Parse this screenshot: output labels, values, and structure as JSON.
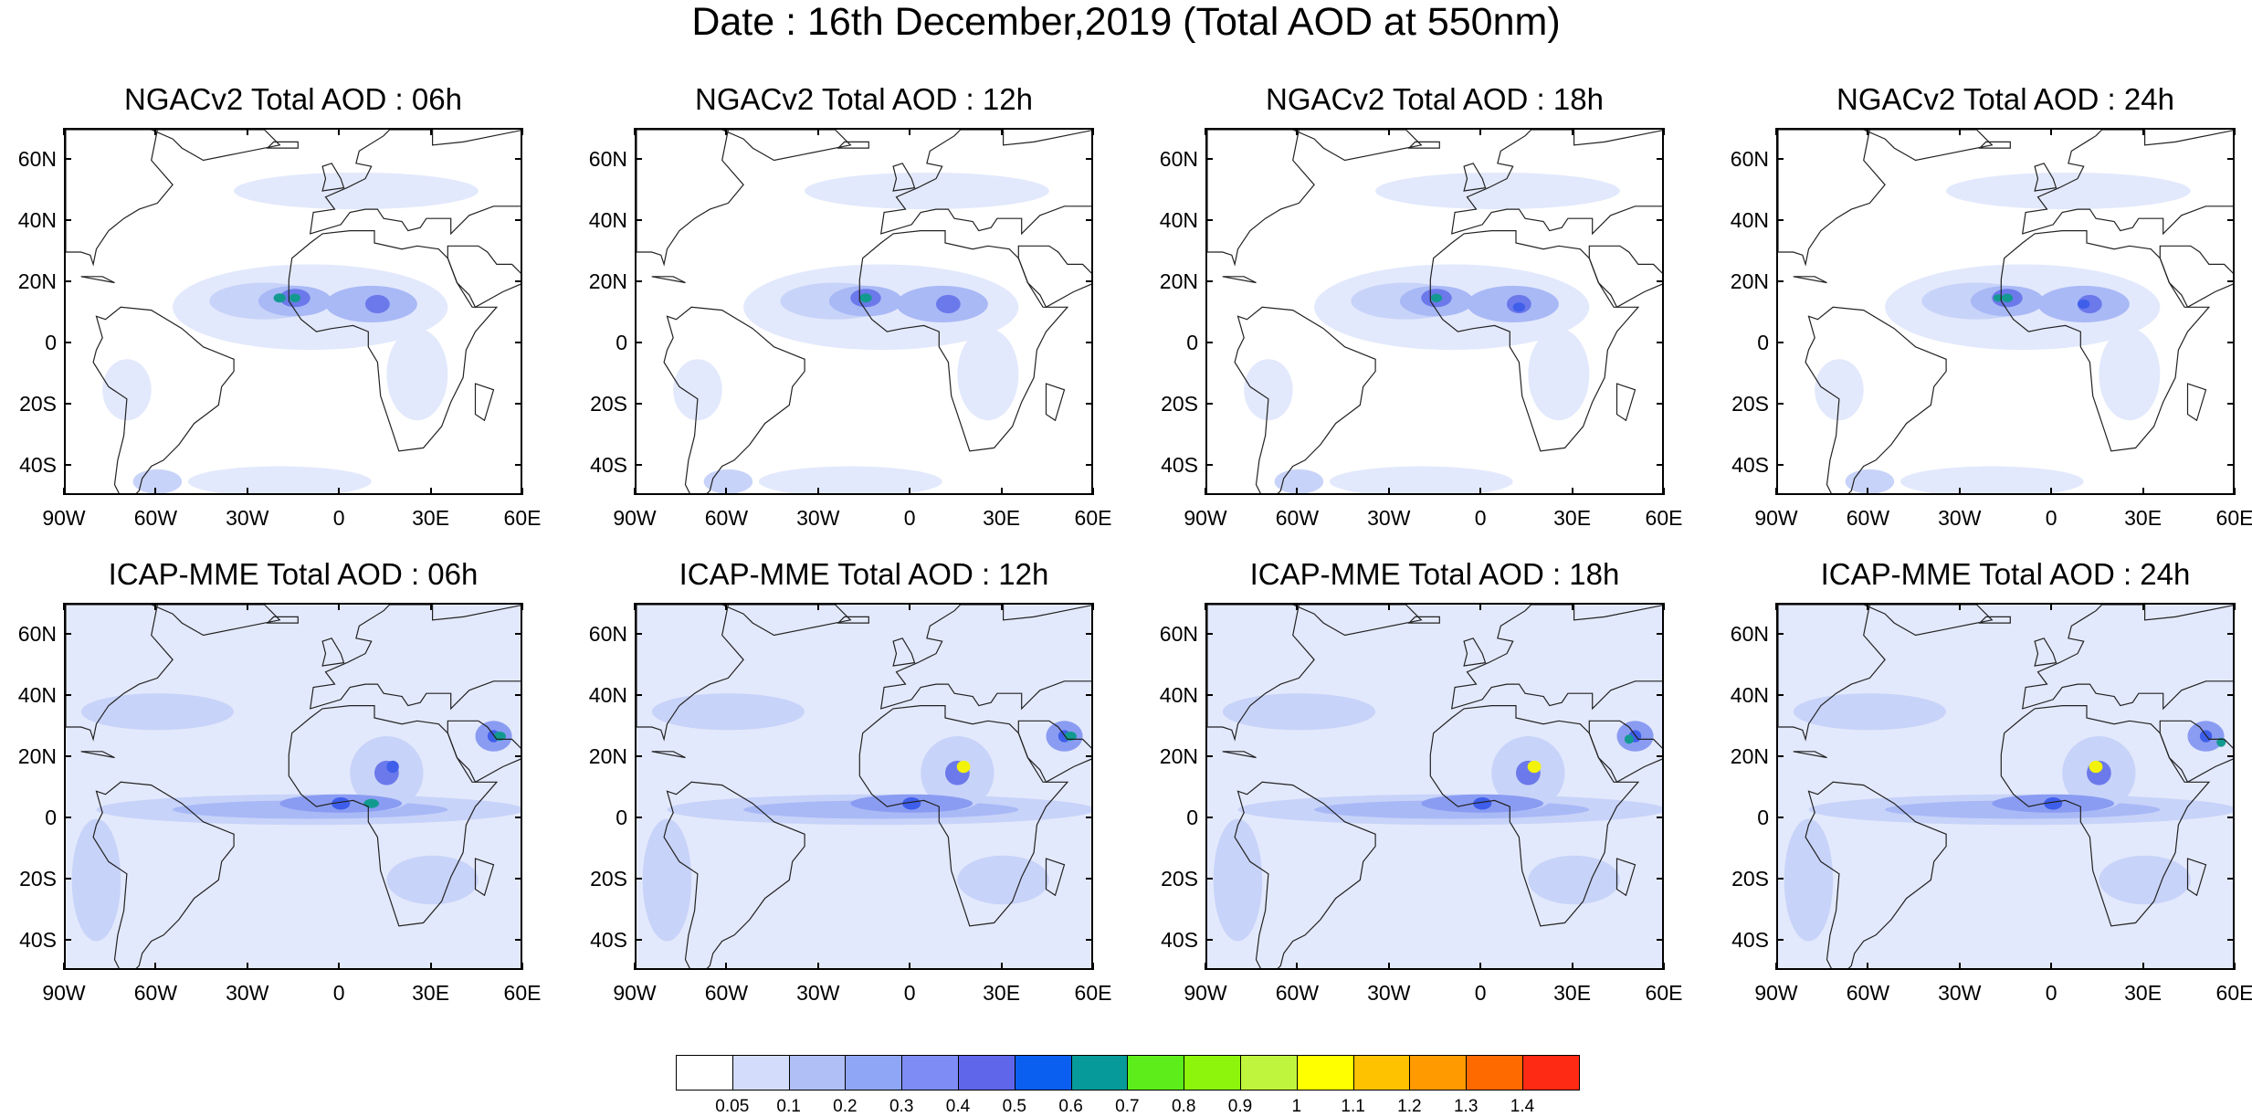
{
  "title": "Date : 16th December,2019 (Total AOD at 550nm)",
  "panels": [
    {
      "title": "NGACv2 Total AOD : 06h",
      "model": "NGACv2",
      "hour": "06h"
    },
    {
      "title": "NGACv2 Total AOD : 12h",
      "model": "NGACv2",
      "hour": "12h"
    },
    {
      "title": "NGACv2 Total AOD : 18h",
      "model": "NGACv2",
      "hour": "18h"
    },
    {
      "title": "NGACv2 Total AOD : 24h",
      "model": "NGACv2",
      "hour": "24h"
    },
    {
      "title": "ICAP-MME Total AOD : 06h",
      "model": "ICAP-MME",
      "hour": "06h"
    },
    {
      "title": "ICAP-MME Total AOD : 12h",
      "model": "ICAP-MME",
      "hour": "12h"
    },
    {
      "title": "ICAP-MME Total AOD : 18h",
      "model": "ICAP-MME",
      "hour": "18h"
    },
    {
      "title": "ICAP-MME Total AOD : 24h",
      "model": "ICAP-MME",
      "hour": "24h"
    }
  ],
  "lat_labels": [
    "60N",
    "40N",
    "20N",
    "0",
    "20S",
    "40S"
  ],
  "lon_labels": [
    "90W",
    "60W",
    "30W",
    "0",
    "30E",
    "60E"
  ],
  "colorbar": {
    "labels": [
      "0.05",
      "0.1",
      "0.2",
      "0.3",
      "0.4",
      "0.5",
      "0.6",
      "0.7",
      "0.8",
      "0.9",
      "1",
      "1.1",
      "1.2",
      "1.3",
      "1.4"
    ],
    "colors": [
      "#ffffff",
      "#d3dcfa",
      "#b0c0f6",
      "#8fa6f7",
      "#7d8df5",
      "#5f66ea",
      "#0a5ef0",
      "#079a9a",
      "#5ded1a",
      "#8df50c",
      "#c0f53e",
      "#ffff00",
      "#ffc200",
      "#ff9a00",
      "#ff6a00",
      "#ff2a14"
    ]
  },
  "map_colors": {
    "ocean_low": "#ffffff",
    "aod_01": "#e3e9fc",
    "aod_02": "#c8d3f9",
    "aod_03": "#a9b9f6",
    "aod_04": "#8a9cf2",
    "aod_05": "#6b79ea",
    "aod_06": "#3f5eea",
    "aod_07": "#139a90",
    "aod_11": "#f2f20a",
    "coast": "#222222"
  }
}
